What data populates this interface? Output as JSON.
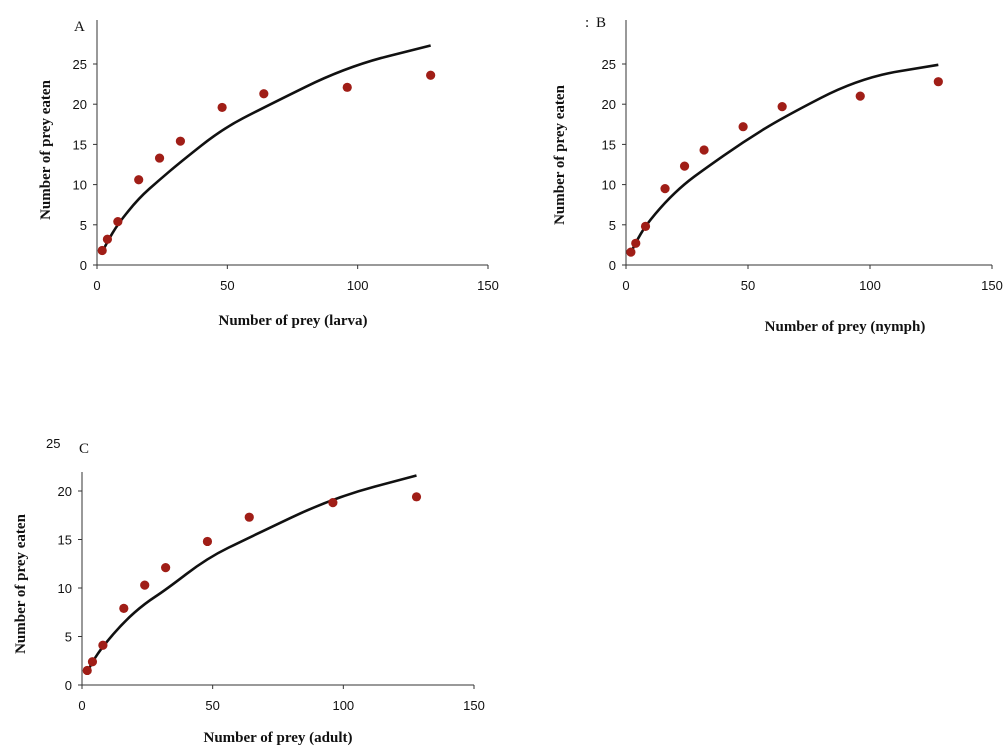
{
  "chart_data": [
    {
      "panel": "A",
      "type": "scatter",
      "xlabel": "Number of prey (larva)",
      "ylabel": "Number of prey eaten",
      "xlim": [
        0,
        150
      ],
      "ylim": [
        0,
        25
      ],
      "xticks": [
        0,
        50,
        100,
        150
      ],
      "yticks": [
        0,
        5,
        10,
        15,
        20,
        25
      ],
      "points": {
        "x": [
          2,
          4,
          8,
          16,
          24,
          32,
          48,
          64,
          96,
          128
        ],
        "y": [
          1.8,
          3.2,
          5.4,
          10.6,
          13.3,
          15.4,
          19.6,
          21.3,
          22.1,
          23.6
        ]
      },
      "fitted_curve": {
        "x": [
          2,
          4,
          8,
          16,
          24,
          32,
          48,
          64,
          96,
          128
        ],
        "y": [
          1.6,
          2.9,
          5.1,
          8.3,
          10.6,
          12.8,
          16.9,
          19.6,
          24.7,
          27.3
        ]
      },
      "marker_color": "#a01e17",
      "line_color": "#111111"
    },
    {
      "panel": "B",
      "type": "scatter",
      "stray_mark": ":",
      "xlabel": "Number of prey (nymph)",
      "ylabel": "Number of prey eaten",
      "xlim": [
        0,
        150
      ],
      "ylim": [
        0,
        25
      ],
      "xticks": [
        0,
        50,
        100,
        150
      ],
      "yticks": [
        0,
        5,
        10,
        15,
        20,
        25
      ],
      "points": {
        "x": [
          2,
          4,
          8,
          16,
          24,
          32,
          48,
          64,
          96,
          128
        ],
        "y": [
          1.6,
          2.7,
          4.8,
          9.5,
          12.3,
          14.3,
          17.2,
          19.7,
          21.0,
          22.8
        ]
      },
      "fitted_curve": {
        "x": [
          2,
          4,
          8,
          16,
          24,
          32,
          48,
          64,
          96,
          128
        ],
        "y": [
          1.5,
          2.8,
          4.9,
          7.8,
          10.1,
          11.9,
          15.3,
          18.3,
          23.3,
          24.9
        ]
      },
      "marker_color": "#a01e17",
      "line_color": "#111111"
    },
    {
      "panel": "C",
      "type": "scatter",
      "xlabel": "Number of prey (adult)",
      "ylabel": "Number of prey eaten",
      "xlim": [
        0,
        150
      ],
      "ylim": [
        0,
        20
      ],
      "xticks": [
        0,
        50,
        100,
        150
      ],
      "yticks": [
        0,
        5,
        10,
        15,
        20
      ],
      "extra_label": "25",
      "points": {
        "x": [
          2,
          4,
          8,
          16,
          24,
          32,
          48,
          64,
          96,
          128
        ],
        "y": [
          1.5,
          2.4,
          4.1,
          7.9,
          10.3,
          12.1,
          14.8,
          17.3,
          18.8,
          19.4
        ]
      },
      "fitted_curve": {
        "x": [
          2,
          4,
          8,
          16,
          24,
          32,
          48,
          64,
          96,
          128
        ],
        "y": [
          1.3,
          2.4,
          4.0,
          6.5,
          8.4,
          9.8,
          13.1,
          15.2,
          19.3,
          21.6
        ]
      },
      "marker_color": "#a01e17",
      "line_color": "#111111"
    }
  ]
}
